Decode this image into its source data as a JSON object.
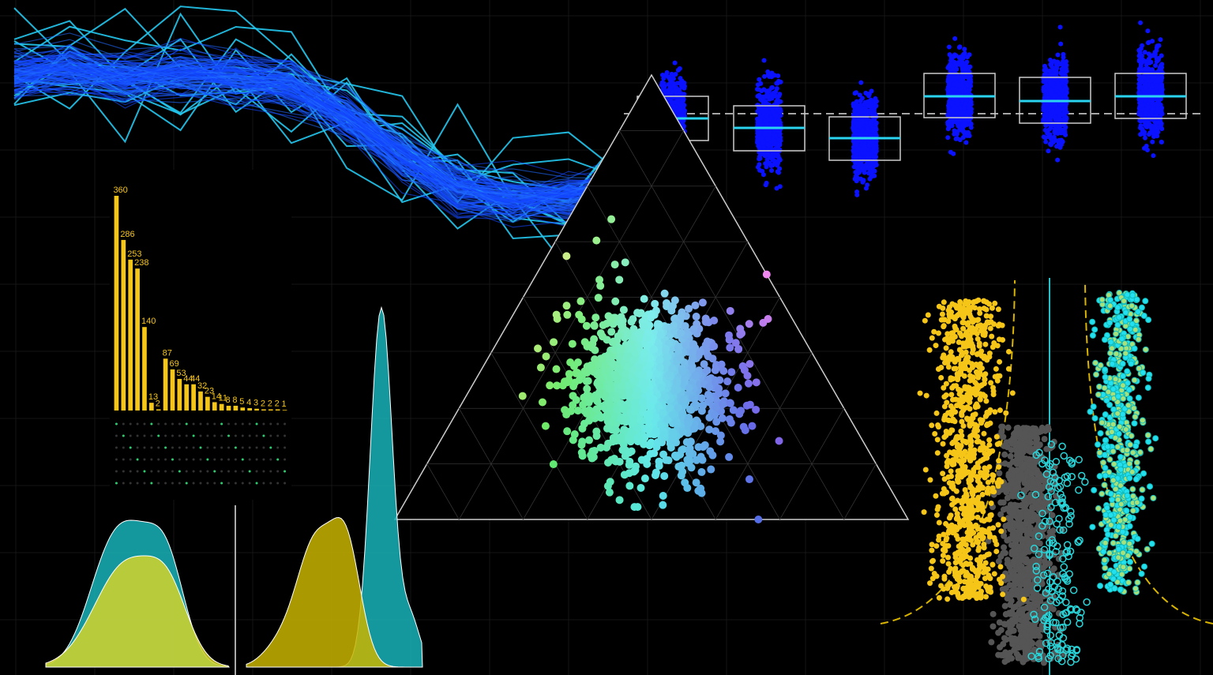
{
  "chart_data": {
    "type": "bar",
    "categories": [
      null,
      null,
      null,
      null,
      null,
      null,
      null,
      null,
      null,
      null,
      null,
      null,
      null,
      null,
      null,
      null,
      null,
      null,
      null,
      null,
      null,
      null,
      null,
      null,
      null
    ],
    "values": [
      360,
      286,
      253,
      238,
      140,
      13,
      2,
      87,
      69,
      53,
      44,
      44,
      32,
      23,
      14,
      11,
      8,
      8,
      5,
      4,
      3,
      2,
      2,
      2,
      1
    ],
    "color": "#f5c518",
    "ylim": [
      0,
      360
    ]
  }
}
